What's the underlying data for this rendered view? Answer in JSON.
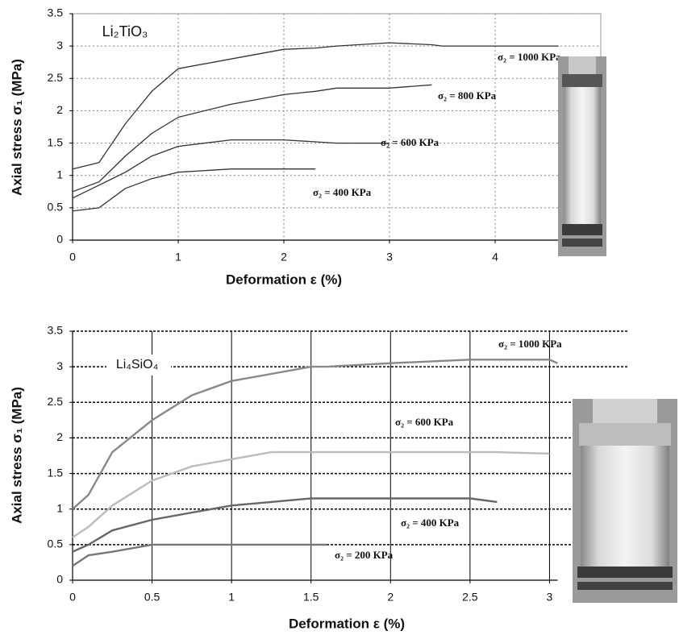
{
  "chart_data": [
    {
      "type": "line",
      "annotation": "Li₂TiO₃",
      "xlabel": "Deformation ε (%)",
      "ylabel": "Axial stress σ₁  (MPa)",
      "x": [
        0,
        0.25,
        0.5,
        0.75,
        1,
        1.5,
        2,
        2.3,
        2.5,
        3,
        3.4,
        3.5,
        4,
        4.6
      ],
      "series": [
        {
          "name": "σ₂ = 1000 KPa",
          "color": "#333333",
          "values": [
            1.1,
            1.2,
            1.8,
            2.3,
            2.65,
            2.8,
            2.95,
            2.97,
            3.0,
            3.05,
            3.02,
            3.0,
            3.0,
            3.0
          ]
        },
        {
          "name": "σ₂ = 800 KPa",
          "color": "#333333",
          "values": [
            0.75,
            0.9,
            1.3,
            1.65,
            1.9,
            2.1,
            2.25,
            2.3,
            2.35,
            2.35,
            2.4,
            null,
            null,
            null
          ]
        },
        {
          "name": "σ₂ = 600 KPa",
          "color": "#333333",
          "values": [
            0.65,
            0.85,
            1.05,
            1.3,
            1.45,
            1.55,
            1.55,
            1.52,
            1.5,
            1.5,
            null,
            null,
            null,
            null
          ]
        },
        {
          "name": "σ₂ = 400 KPa",
          "color": "#333333",
          "values": [
            0.45,
            0.5,
            0.8,
            0.95,
            1.05,
            1.1,
            1.1,
            1.1,
            null,
            null,
            null,
            null,
            null,
            null
          ]
        }
      ],
      "xlim": [
        0,
        5
      ],
      "xticks": [
        0,
        1,
        2,
        3,
        4
      ],
      "ylim": [
        0,
        3.5
      ],
      "yticks": [
        0,
        0.5,
        1,
        1.5,
        2,
        2.5,
        3,
        3.5
      ],
      "grid": true
    },
    {
      "type": "line",
      "annotation": "Li₄SiO₄",
      "xlabel": "Deformation ε (%)",
      "ylabel": "Axial stress σ₁  (MPa)",
      "x": [
        0,
        0.1,
        0.25,
        0.5,
        0.75,
        1,
        1.25,
        1.5,
        1.6,
        2,
        2.5,
        2.67,
        3,
        3.05
      ],
      "series": [
        {
          "name": "σ₂ = 1000 KPa",
          "color": "#888888",
          "values": [
            1.0,
            1.2,
            1.8,
            2.25,
            2.6,
            2.8,
            2.9,
            3.0,
            3.0,
            3.05,
            3.1,
            3.1,
            3.1,
            3.05
          ]
        },
        {
          "name": "σ₂ = 600 KPa",
          "color": "#bbbbbb",
          "values": [
            0.6,
            0.75,
            1.05,
            1.4,
            1.6,
            1.7,
            1.8,
            1.8,
            1.8,
            1.8,
            1.8,
            1.8,
            1.78,
            null
          ]
        },
        {
          "name": "σ₂ = 400 KPa",
          "color": "#666666",
          "values": [
            0.4,
            0.5,
            0.7,
            0.85,
            0.95,
            1.05,
            1.1,
            1.15,
            1.15,
            1.15,
            1.15,
            1.1,
            null,
            null
          ]
        },
        {
          "name": "σ₂ = 200 KPa",
          "color": "#777777",
          "values": [
            0.2,
            0.35,
            0.4,
            0.5,
            0.5,
            0.5,
            0.5,
            0.5,
            0.5,
            null,
            null,
            null,
            null,
            null
          ]
        }
      ],
      "xlim": [
        0,
        3.5
      ],
      "xticks": [
        0,
        0.5,
        1,
        1.5,
        2,
        2.5,
        3
      ],
      "ylim": [
        0,
        3.5
      ],
      "yticks": [
        0,
        0.5,
        1,
        1.5,
        2,
        2.5,
        3,
        3.5
      ],
      "grid": true
    }
  ]
}
